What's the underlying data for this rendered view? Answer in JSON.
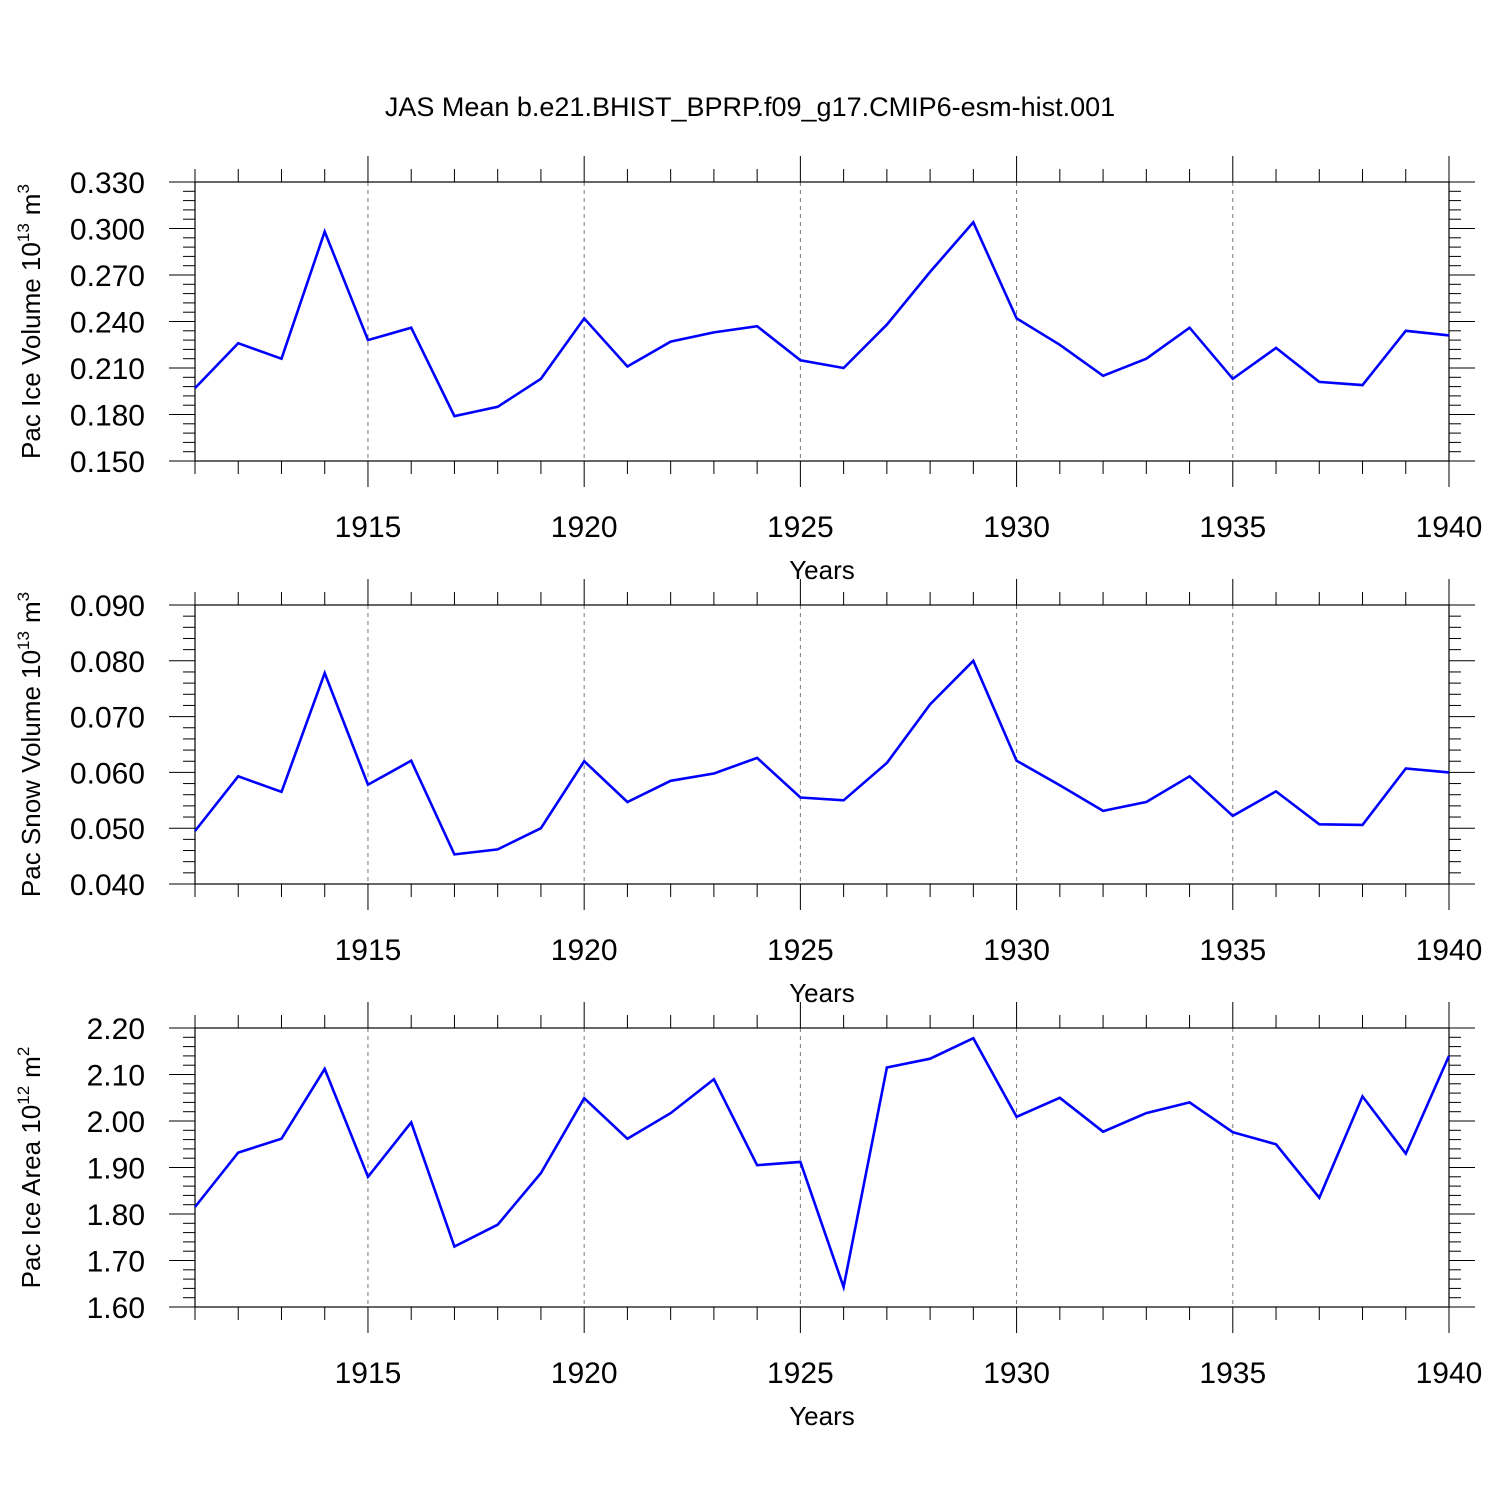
{
  "title": "JAS Mean b.e21.BHIST_BPRP.f09_g17.CMIP6-esm-hist.001",
  "colors": {
    "line": "#0000ff",
    "axis": "#000000",
    "grid": "#777777"
  },
  "chart_data": [
    {
      "type": "line",
      "ylabel_main": "Pac Ice Volume 10",
      "ylabel_sup": "13",
      "ylabel_unit": "m",
      "ylabel_unit_sup": "3",
      "xlabel": "Years",
      "xlim": [
        1911,
        1940
      ],
      "ylim": [
        0.15,
        0.33
      ],
      "yticks": [
        0.15,
        0.18,
        0.21,
        0.24,
        0.27,
        0.3,
        0.33
      ],
      "ytick_labels": [
        "0.150",
        "0.180",
        "0.210",
        "0.240",
        "0.270",
        "0.300",
        "0.330"
      ],
      "xticks": [
        1915,
        1920,
        1925,
        1930,
        1935,
        1940
      ],
      "xtick_labels": [
        "1915",
        "1920",
        "1925",
        "1930",
        "1935",
        "1940"
      ],
      "grid": "vertical dashed at major x ticks",
      "x": [
        1911,
        1912,
        1913,
        1914,
        1915,
        1916,
        1917,
        1918,
        1919,
        1920,
        1921,
        1922,
        1923,
        1924,
        1925,
        1926,
        1927,
        1928,
        1929,
        1930,
        1931,
        1932,
        1933,
        1934,
        1935,
        1936,
        1937,
        1938,
        1939,
        1940
      ],
      "series": [
        {
          "name": "Pac Ice Volume",
          "values": [
            0.197,
            0.226,
            0.216,
            0.298,
            0.228,
            0.236,
            0.179,
            0.185,
            0.203,
            0.242,
            0.211,
            0.227,
            0.233,
            0.237,
            0.215,
            0.21,
            0.238,
            0.272,
            0.304,
            0.242,
            0.225,
            0.205,
            0.216,
            0.236,
            0.203,
            0.223,
            0.201,
            0.199,
            0.234,
            0.231
          ]
        }
      ]
    },
    {
      "type": "line",
      "ylabel_main": "Pac Snow Volume 10",
      "ylabel_sup": "13",
      "ylabel_unit": "m",
      "ylabel_unit_sup": "3",
      "xlabel": "Years",
      "xlim": [
        1911,
        1940
      ],
      "ylim": [
        0.04,
        0.09
      ],
      "yticks": [
        0.04,
        0.05,
        0.06,
        0.07,
        0.08,
        0.09
      ],
      "ytick_labels": [
        "0.040",
        "0.050",
        "0.060",
        "0.070",
        "0.080",
        "0.090"
      ],
      "xticks": [
        1915,
        1920,
        1925,
        1930,
        1935,
        1940
      ],
      "xtick_labels": [
        "1915",
        "1920",
        "1925",
        "1930",
        "1935",
        "1940"
      ],
      "grid": "vertical dashed at major x ticks",
      "x": [
        1911,
        1912,
        1913,
        1914,
        1915,
        1916,
        1917,
        1918,
        1919,
        1920,
        1921,
        1922,
        1923,
        1924,
        1925,
        1926,
        1927,
        1928,
        1929,
        1930,
        1931,
        1932,
        1933,
        1934,
        1935,
        1936,
        1937,
        1938,
        1939,
        1940
      ],
      "series": [
        {
          "name": "Pac Snow Volume",
          "values": [
            0.0495,
            0.0593,
            0.0565,
            0.0778,
            0.0578,
            0.0621,
            0.0453,
            0.0462,
            0.05,
            0.062,
            0.0547,
            0.0585,
            0.0598,
            0.0626,
            0.0555,
            0.055,
            0.0617,
            0.0722,
            0.08,
            0.0621,
            0.0577,
            0.0531,
            0.0547,
            0.0593,
            0.0522,
            0.0566,
            0.0507,
            0.0506,
            0.0607,
            0.06
          ]
        }
      ]
    },
    {
      "type": "line",
      "ylabel_main": "Pac Ice Area 10",
      "ylabel_sup": "12",
      "ylabel_unit": "m",
      "ylabel_unit_sup": "2",
      "xlabel": "Years",
      "xlim": [
        1911,
        1940
      ],
      "ylim": [
        1.6,
        2.2
      ],
      "yticks": [
        1.6,
        1.7,
        1.8,
        1.9,
        2.0,
        2.1,
        2.2
      ],
      "ytick_labels": [
        "1.60",
        "1.70",
        "1.80",
        "1.90",
        "2.00",
        "2.10",
        "2.20"
      ],
      "xticks": [
        1915,
        1920,
        1925,
        1930,
        1935,
        1940
      ],
      "xtick_labels": [
        "1915",
        "1920",
        "1925",
        "1930",
        "1935",
        "1940"
      ],
      "grid": "vertical dashed at major x ticks",
      "x": [
        1911,
        1912,
        1913,
        1914,
        1915,
        1916,
        1917,
        1918,
        1919,
        1920,
        1921,
        1922,
        1923,
        1924,
        1925,
        1926,
        1927,
        1928,
        1929,
        1930,
        1931,
        1932,
        1933,
        1934,
        1935,
        1936,
        1937,
        1938,
        1939,
        1940
      ],
      "series": [
        {
          "name": "Pac Ice Area",
          "values": [
            1.815,
            1.932,
            1.962,
            2.112,
            1.88,
            1.997,
            1.73,
            1.777,
            1.888,
            2.049,
            1.962,
            2.017,
            2.09,
            1.905,
            1.912,
            1.643,
            2.115,
            2.134,
            2.178,
            2.009,
            2.05,
            1.977,
            2.017,
            2.04,
            1.976,
            1.95,
            1.835,
            2.053,
            1.93,
            2.14
          ]
        }
      ]
    }
  ]
}
